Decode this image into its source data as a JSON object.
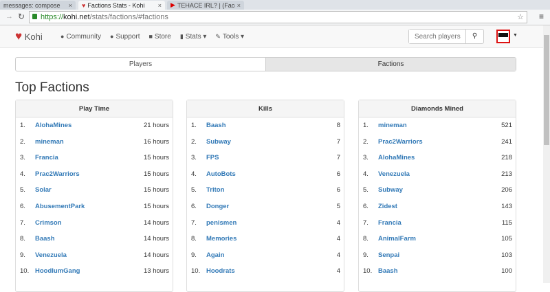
{
  "browser": {
    "tabs": [
      {
        "title": "messages: compose"
      },
      {
        "title": "Factions Stats - Kohi"
      },
      {
        "title": "TEHACE IRL? | (Face Reve"
      }
    ],
    "url": {
      "scheme": "https://",
      "host": "kohi.net",
      "path": "/stats/factions/#factions"
    }
  },
  "nav": {
    "brand": "Kohi",
    "items": [
      {
        "label": "Community",
        "icon": "users-icon"
      },
      {
        "label": "Support",
        "icon": "question-icon"
      },
      {
        "label": "Store",
        "icon": "cart-icon"
      },
      {
        "label": "Stats ▾",
        "icon": "bar-chart-icon"
      },
      {
        "label": "Tools ▾",
        "icon": "wrench-icon"
      }
    ],
    "search_placeholder": "Search players"
  },
  "tabs": {
    "players": "Players",
    "factions": "Factions"
  },
  "title": "Top Factions",
  "panels": [
    {
      "title": "Play Time",
      "rows": [
        [
          "1.",
          "AlohaMines",
          "21 hours"
        ],
        [
          "2.",
          "mineman",
          "16 hours"
        ],
        [
          "3.",
          "Francia",
          "15 hours"
        ],
        [
          "4.",
          "Prac2Warriors",
          "15 hours"
        ],
        [
          "5.",
          "Solar",
          "15 hours"
        ],
        [
          "6.",
          "AbusementPark",
          "15 hours"
        ],
        [
          "7.",
          "Crimson",
          "14 hours"
        ],
        [
          "8.",
          "Baash",
          "14 hours"
        ],
        [
          "9.",
          "Venezuela",
          "14 hours"
        ],
        [
          "10.",
          "HoodlumGang",
          "13 hours"
        ]
      ]
    },
    {
      "title": "Kills",
      "rows": [
        [
          "1.",
          "Baash",
          "8"
        ],
        [
          "2.",
          "Subway",
          "7"
        ],
        [
          "3.",
          "FPS",
          "7"
        ],
        [
          "4.",
          "AutoBots",
          "6"
        ],
        [
          "5.",
          "Triton",
          "6"
        ],
        [
          "6.",
          "Donger",
          "5"
        ],
        [
          "7.",
          "penismen",
          "4"
        ],
        [
          "8.",
          "Memories",
          "4"
        ],
        [
          "9.",
          "Again",
          "4"
        ],
        [
          "10.",
          "Hoodrats",
          "4"
        ]
      ]
    },
    {
      "title": "Diamonds Mined",
      "rows": [
        [
          "1.",
          "mineman",
          "521"
        ],
        [
          "2.",
          "Prac2Warriors",
          "241"
        ],
        [
          "3.",
          "AlohaMines",
          "218"
        ],
        [
          "4.",
          "Venezuela",
          "213"
        ],
        [
          "5.",
          "Subway",
          "206"
        ],
        [
          "6.",
          "Zidest",
          "143"
        ],
        [
          "7.",
          "Francia",
          "115"
        ],
        [
          "8.",
          "AnimalFarm",
          "105"
        ],
        [
          "9.",
          "Senpai",
          "103"
        ],
        [
          "10.",
          "Baash",
          "100"
        ]
      ]
    }
  ]
}
